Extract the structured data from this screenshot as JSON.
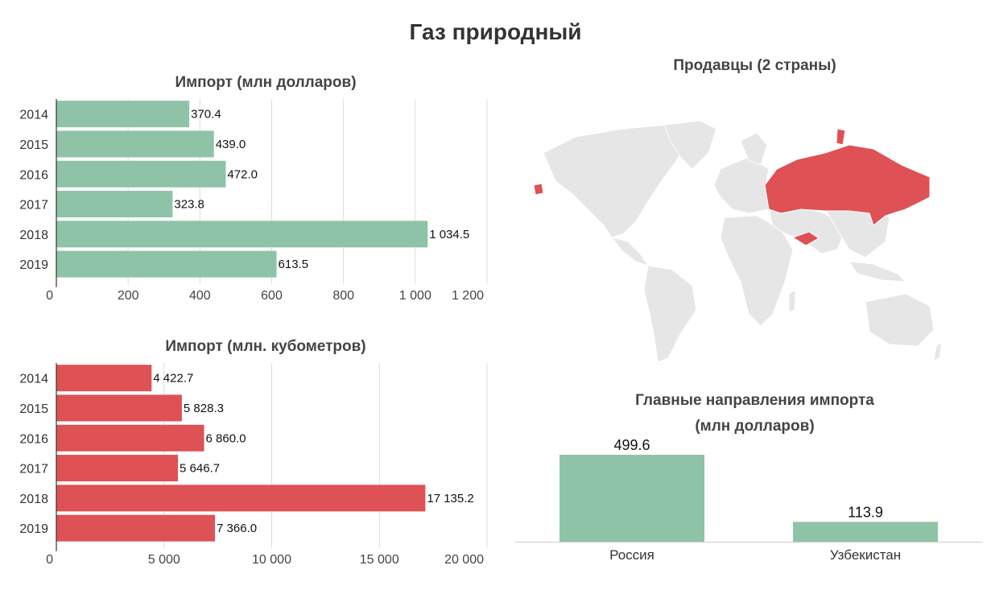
{
  "title": "Газ природный",
  "chart_data": [
    {
      "type": "bar",
      "orientation": "horizontal",
      "title": "Импорт (млн долларов)",
      "categories": [
        "2014",
        "2015",
        "2016",
        "2017",
        "2018",
        "2019"
      ],
      "values": [
        370.4,
        439.0,
        472.0,
        323.8,
        1034.5,
        613.5
      ],
      "value_labels": [
        "370.4",
        "439.0",
        "472.0",
        "323.8",
        "1 034.5",
        "613.5"
      ],
      "xlim": [
        0,
        1200
      ],
      "ticks": [
        0,
        200,
        400,
        600,
        800,
        1000,
        1200
      ],
      "tick_labels": [
        "0",
        "200",
        "400",
        "600",
        "800",
        "1 000",
        "1 200"
      ],
      "grid": true,
      "color": "#8ec3a7"
    },
    {
      "type": "bar",
      "orientation": "horizontal",
      "title": "Импорт (млн. кубометров)",
      "categories": [
        "2014",
        "2015",
        "2016",
        "2017",
        "2018",
        "2019"
      ],
      "values": [
        4422.7,
        5828.3,
        6860.0,
        5646.7,
        17135.2,
        7366.0
      ],
      "value_labels": [
        "4 422.7",
        "5 828.3",
        "6 860.0",
        "5 646.7",
        "17 135.2",
        "7 366.0"
      ],
      "xlim": [
        0,
        20000
      ],
      "ticks": [
        0,
        5000,
        10000,
        15000,
        20000
      ],
      "tick_labels": [
        "0",
        "5 000",
        "10 000",
        "15 000",
        "20 000"
      ],
      "grid": true,
      "color": "#de5154"
    },
    {
      "type": "bar",
      "orientation": "vertical",
      "title": "Главные направления импорта",
      "subtitle": "(млн долларов)",
      "categories": [
        "Россия",
        "Узбекистан"
      ],
      "values": [
        499.6,
        113.9
      ],
      "value_labels": [
        "499.6",
        "113.9"
      ],
      "ylim": [
        0,
        520
      ],
      "color": "#8ec3a7"
    }
  ],
  "map": {
    "title": "Продавцы (2 страны)",
    "highlighted": [
      "Russia",
      "Uzbekistan"
    ],
    "highlight_color": "#de5154",
    "base_color": "#e6e6e6"
  }
}
